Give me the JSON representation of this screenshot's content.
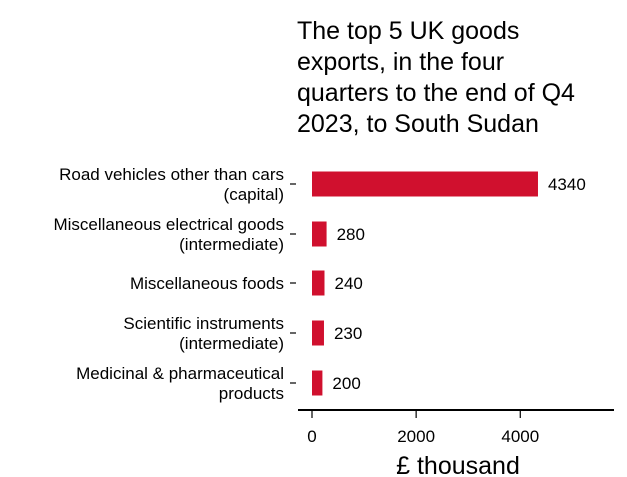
{
  "chart_data": {
    "type": "bar",
    "orientation": "horizontal",
    "title": "The top 5 UK goods exports, in the four quarters to the end of Q4 2023, to South Sudan",
    "title_lines": [
      "The top 5 UK goods",
      "exports, in the four",
      "quarters to the end of Q4",
      "2023, to South Sudan"
    ],
    "xlabel": "£ thousand",
    "ylabel": "",
    "categories": [
      [
        "Road vehicles other than cars",
        "(capital)"
      ],
      [
        "Miscellaneous electrical goods",
        "(intermediate)"
      ],
      [
        "Miscellaneous foods"
      ],
      [
        "Scientific instruments",
        "(intermediate)"
      ],
      [
        "Medicinal & pharmaceutical",
        "products"
      ]
    ],
    "values": [
      4340,
      280,
      240,
      230,
      200
    ],
    "data_labels": [
      "4340",
      "280",
      "240",
      "230",
      "200"
    ],
    "xticks": [
      0,
      2000,
      4000
    ],
    "xtick_labels": [
      "0",
      "2000",
      "4000"
    ],
    "xlim": [
      0,
      5800
    ],
    "bar_color": "#d0102e",
    "grid": false,
    "legend": "none"
  }
}
